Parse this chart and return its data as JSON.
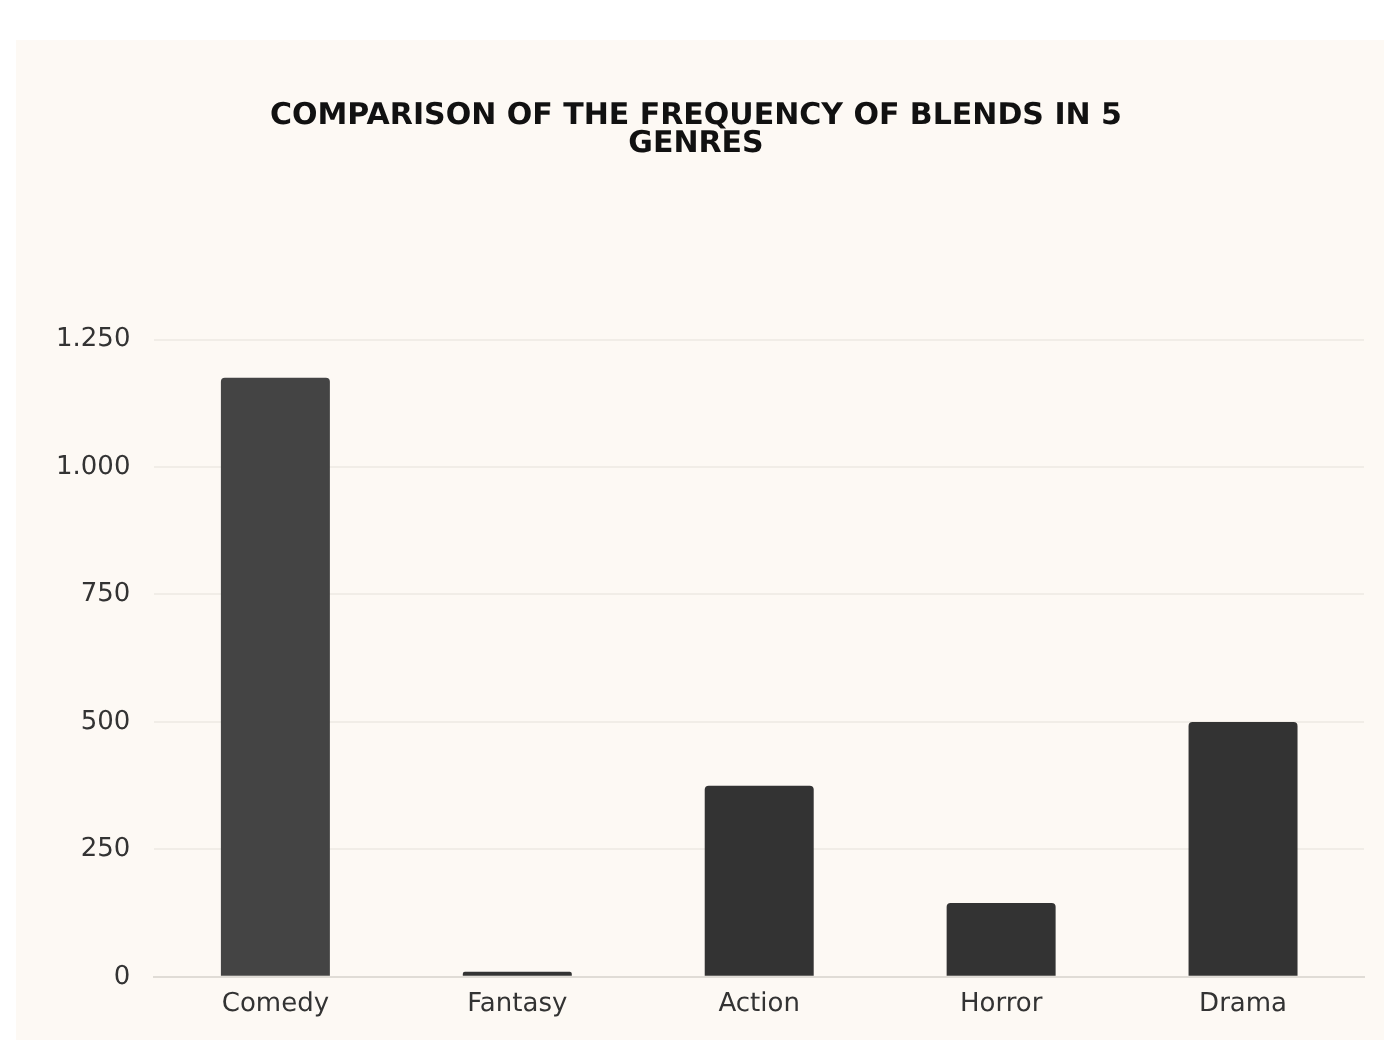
{
  "chart_data": {
    "type": "bar",
    "title": "COMPARISON OF THE FREQUENCY OF BLENDS IN 5 GENRES",
    "categories": [
      "Comedy",
      "Fantasy",
      "Action",
      "Horror",
      "Drama"
    ],
    "values": [
      1175,
      10,
      375,
      145,
      500
    ],
    "colors": [
      "#444444",
      "#333333",
      "#333333",
      "#333333",
      "#333333"
    ],
    "ylim": [
      0,
      1250
    ],
    "yticks": [
      0,
      250,
      500,
      750,
      {
        "value": 1000,
        "label": "1.000"
      },
      {
        "value": 1250,
        "label": "1.250"
      }
    ],
    "grid": "y",
    "legend": false
  }
}
